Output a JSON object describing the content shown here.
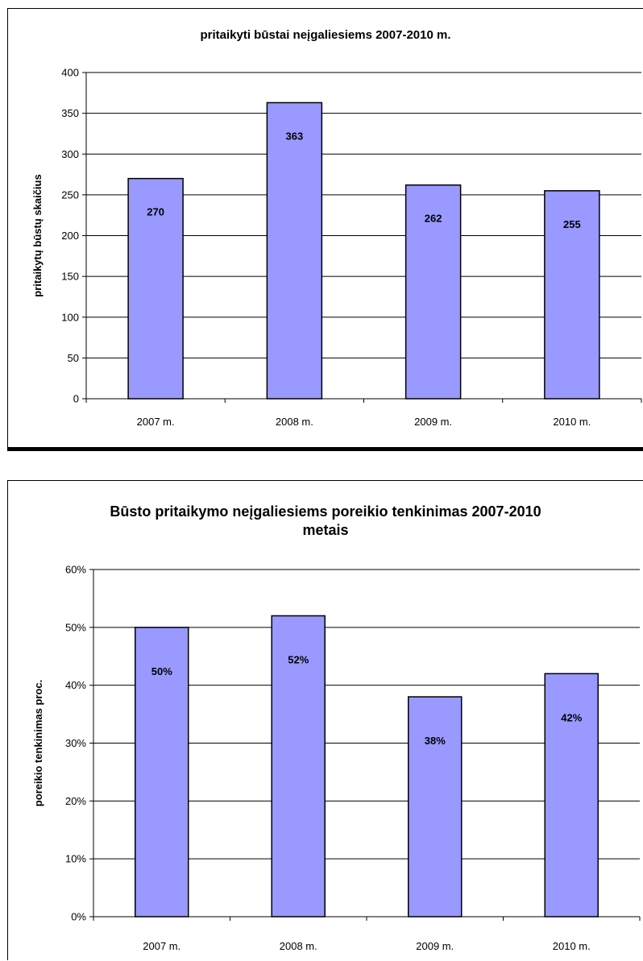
{
  "colors": {
    "bar_fill": "#9999ff",
    "bar_stroke": "#000000",
    "grid": "#000000"
  },
  "chart_data": [
    {
      "type": "bar",
      "title": "pritaikyti būstai neįgaliesiems 2007-2010 m.",
      "xlabel": "",
      "ylabel": "pritaikytų būstų skaičius",
      "categories": [
        "2007 m.",
        "2008 m.",
        "2009 m.",
        "2010 m."
      ],
      "values": [
        270,
        363,
        262,
        255
      ],
      "data_labels": [
        "270",
        "363",
        "262",
        "255"
      ],
      "ylim": [
        0,
        400
      ],
      "yticks": [
        0,
        50,
        100,
        150,
        200,
        250,
        300,
        350,
        400
      ],
      "ytick_labels": [
        "0",
        "50",
        "100",
        "150",
        "200",
        "250",
        "300",
        "350",
        "400"
      ],
      "grid": true,
      "legend": "none"
    },
    {
      "type": "bar",
      "title": "Būsto pritaikymo neįgaliesiems poreikio tenkinimas 2007-2010\nmetais",
      "xlabel": "",
      "ylabel": "poreikio tenkinimas proc.",
      "categories": [
        "2007 m.",
        "2008 m.",
        "2009 m.",
        "2010 m."
      ],
      "values": [
        50,
        52,
        38,
        42
      ],
      "data_labels": [
        "50%",
        "52%",
        "38%",
        "42%"
      ],
      "ylim": [
        0,
        60
      ],
      "yticks": [
        0,
        10,
        20,
        30,
        40,
        50,
        60
      ],
      "ytick_labels": [
        "0%",
        "10%",
        "20%",
        "30%",
        "40%",
        "50%",
        "60%"
      ],
      "grid": true,
      "legend": "none"
    }
  ]
}
